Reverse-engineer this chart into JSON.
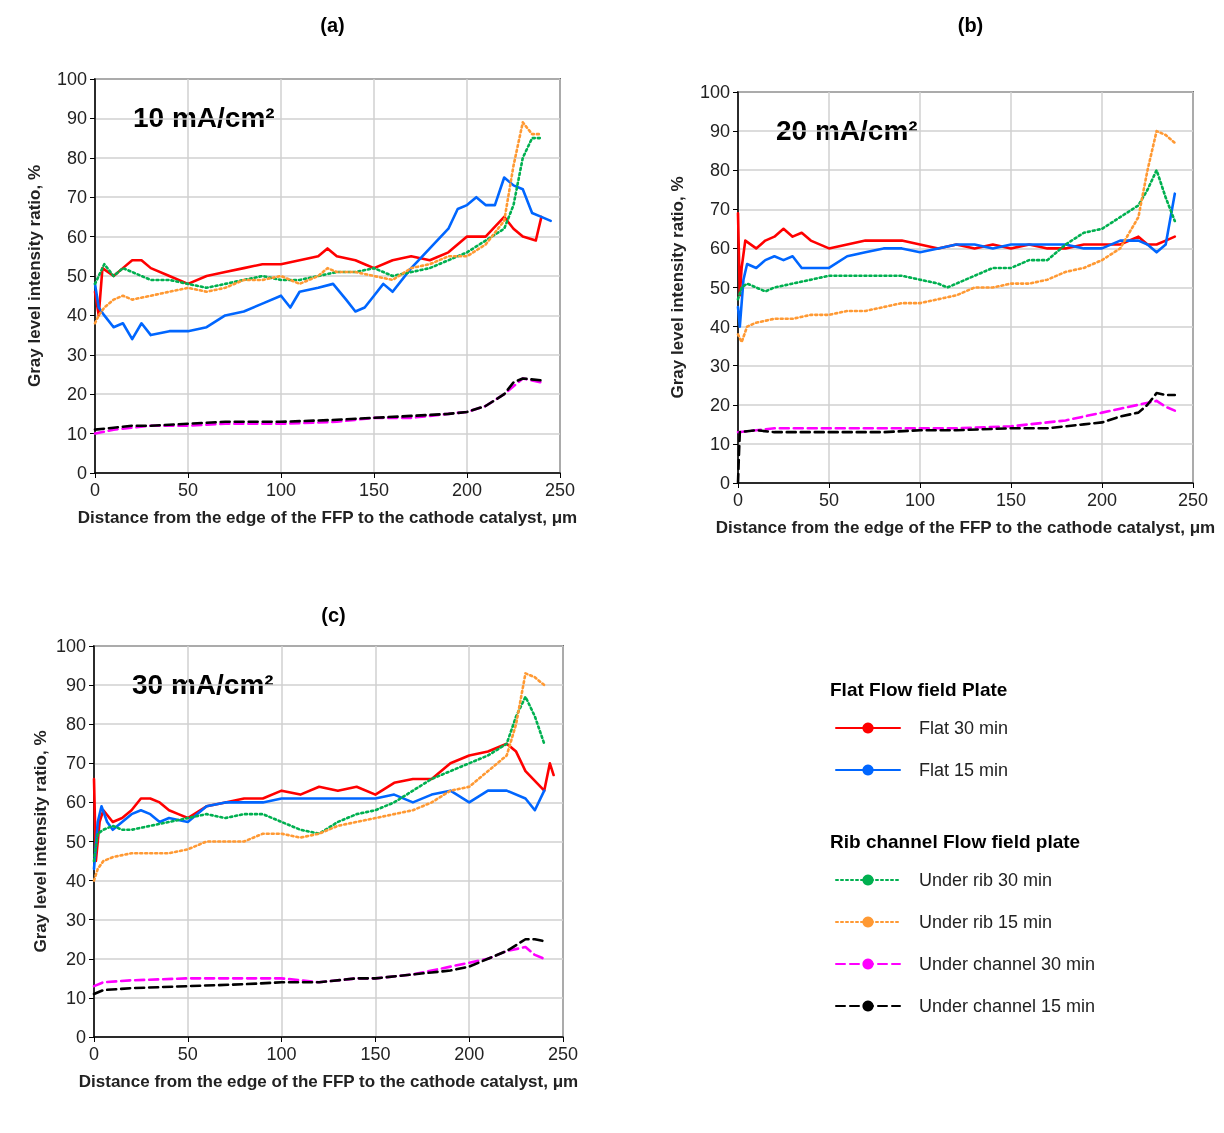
{
  "chart_data": [
    {
      "type": "line",
      "title": "(a)",
      "xlabel": "Distance from the edge of the FFP to the cathode catalyst, μm",
      "ylabel": "Gray level intensity ratio, %",
      "annotations": [
        "10 mA/cm²"
      ],
      "xlim": [
        0,
        250
      ],
      "ylim": [
        0,
        100
      ],
      "xticks": [
        0,
        50,
        100,
        150,
        200,
        250
      ],
      "yticks": [
        0,
        10,
        20,
        30,
        40,
        50,
        60,
        70,
        80,
        90,
        100
      ],
      "grid": true,
      "series": [
        {
          "color": "#ff0000",
          "line_style": "solid",
          "x": [
            0,
            2,
            4,
            10,
            15,
            20,
            25,
            30,
            40,
            50,
            60,
            70,
            80,
            90,
            100,
            110,
            120,
            125,
            130,
            140,
            145,
            150,
            160,
            170,
            180,
            190,
            200,
            210,
            220,
            225,
            230,
            237,
            240
          ],
          "values": [
            46,
            40,
            52,
            50,
            52,
            54,
            54,
            52,
            50,
            48,
            50,
            51,
            52,
            53,
            53,
            54,
            55,
            57,
            55,
            54,
            53,
            52,
            54,
            55,
            54,
            56,
            60,
            60,
            65,
            62,
            60,
            59,
            65
          ]
        },
        {
          "color": "#0066ff",
          "line_style": "solid",
          "x": [
            0,
            2,
            5,
            10,
            15,
            20,
            25,
            30,
            40,
            50,
            60,
            70,
            80,
            90,
            100,
            105,
            110,
            120,
            128,
            135,
            140,
            145,
            150,
            155,
            160,
            170,
            180,
            190,
            195,
            200,
            205,
            210,
            215,
            220,
            225,
            230,
            235,
            240,
            245
          ],
          "values": [
            48,
            42,
            40,
            37,
            38,
            34,
            38,
            35,
            36,
            36,
            37,
            40,
            41,
            43,
            45,
            42,
            46,
            47,
            48,
            44,
            41,
            42,
            45,
            48,
            46,
            52,
            57,
            62,
            67,
            68,
            70,
            68,
            68,
            75,
            73,
            72,
            66,
            65,
            64
          ]
        },
        {
          "color": "#00b050",
          "line_style": "dotted",
          "x": [
            0,
            2,
            5,
            10,
            15,
            20,
            30,
            40,
            50,
            60,
            70,
            80,
            90,
            100,
            110,
            120,
            130,
            140,
            150,
            160,
            170,
            180,
            190,
            200,
            210,
            220,
            225,
            230,
            235,
            240
          ],
          "values": [
            48,
            50,
            53,
            50,
            52,
            51,
            49,
            49,
            48,
            47,
            48,
            49,
            50,
            49,
            49,
            50,
            51,
            51,
            52,
            50,
            51,
            52,
            54,
            56,
            59,
            62,
            68,
            80,
            85,
            85
          ]
        },
        {
          "color": "#ff9933",
          "line_style": "dotted",
          "x": [
            0,
            2,
            5,
            10,
            15,
            20,
            30,
            40,
            50,
            60,
            70,
            80,
            90,
            100,
            110,
            120,
            125,
            130,
            140,
            150,
            160,
            170,
            180,
            190,
            200,
            210,
            220,
            225,
            230,
            235,
            240
          ],
          "values": [
            38,
            40,
            42,
            44,
            45,
            44,
            45,
            46,
            47,
            46,
            47,
            49,
            49,
            50,
            48,
            50,
            52,
            51,
            51,
            50,
            49,
            52,
            53,
            55,
            55,
            58,
            64,
            78,
            89,
            86,
            86
          ]
        },
        {
          "color": "#ff00ff",
          "line_style": "dashed",
          "x": [
            0,
            10,
            20,
            30,
            50,
            70,
            100,
            130,
            150,
            170,
            190,
            200,
            210,
            220,
            225,
            230,
            235,
            240
          ],
          "values": [
            10,
            11,
            11.5,
            12,
            12,
            12.5,
            12.5,
            13,
            14,
            14,
            15,
            15.5,
            17,
            20,
            22,
            24,
            23.5,
            23
          ]
        },
        {
          "color": "#000000",
          "line_style": "dashed",
          "x": [
            0,
            10,
            20,
            30,
            50,
            70,
            100,
            130,
            150,
            170,
            190,
            200,
            210,
            220,
            225,
            230,
            240
          ],
          "values": [
            11,
            11.5,
            12,
            12,
            12.5,
            13,
            13,
            13.5,
            14,
            14.5,
            15,
            15.5,
            17,
            20,
            23,
            24,
            23.5
          ]
        }
      ]
    },
    {
      "type": "line",
      "title": "(b)",
      "xlabel": "Distance from the edge of the FFP to the cathode catalyst, μm",
      "ylabel": "Gray level intensity ratio, %",
      "annotations": [
        "20 mA/cm²"
      ],
      "xlim": [
        0,
        250
      ],
      "ylim": [
        0,
        100
      ],
      "xticks": [
        0,
        50,
        100,
        150,
        200,
        250
      ],
      "yticks": [
        0,
        10,
        20,
        30,
        40,
        50,
        60,
        70,
        80,
        90,
        100
      ],
      "grid": true,
      "series": [
        {
          "color": "#ff0000",
          "line_style": "solid",
          "x": [
            0,
            1,
            2,
            4,
            10,
            15,
            20,
            25,
            30,
            35,
            40,
            50,
            60,
            70,
            80,
            90,
            100,
            110,
            120,
            130,
            140,
            150,
            160,
            170,
            180,
            190,
            200,
            210,
            220,
            225,
            230,
            235,
            240
          ],
          "values": [
            69,
            48,
            55,
            62,
            60,
            62,
            63,
            65,
            63,
            64,
            62,
            60,
            61,
            62,
            62,
            62,
            61,
            60,
            61,
            60,
            61,
            60,
            61,
            60,
            60,
            61,
            61,
            61,
            63,
            61,
            61,
            62,
            63
          ]
        },
        {
          "color": "#0066ff",
          "line_style": "solid",
          "x": [
            0,
            1,
            3,
            5,
            10,
            15,
            20,
            25,
            30,
            35,
            45,
            50,
            60,
            70,
            80,
            90,
            100,
            110,
            120,
            130,
            140,
            150,
            160,
            170,
            180,
            190,
            200,
            210,
            220,
            225,
            230,
            235,
            240
          ],
          "values": [
            45,
            40,
            52,
            56,
            55,
            57,
            58,
            57,
            58,
            55,
            55,
            55,
            58,
            59,
            60,
            60,
            59,
            60,
            61,
            61,
            60,
            61,
            61,
            61,
            61,
            60,
            60,
            62,
            62,
            61,
            59,
            61,
            74
          ]
        },
        {
          "color": "#00b050",
          "line_style": "dotted",
          "x": [
            0,
            2,
            5,
            10,
            15,
            20,
            30,
            40,
            50,
            60,
            70,
            80,
            90,
            100,
            110,
            115,
            120,
            130,
            140,
            150,
            160,
            170,
            180,
            190,
            200,
            210,
            220,
            225,
            230,
            235,
            240
          ],
          "values": [
            47,
            50,
            51,
            50,
            49,
            50,
            51,
            52,
            53,
            53,
            53,
            53,
            53,
            52,
            51,
            50,
            51,
            53,
            55,
            55,
            57,
            57,
            61,
            64,
            65,
            68,
            71,
            75,
            80,
            73,
            67
          ]
        },
        {
          "color": "#ff9933",
          "line_style": "dotted",
          "x": [
            0,
            2,
            5,
            10,
            20,
            30,
            40,
            50,
            60,
            70,
            80,
            90,
            100,
            110,
            120,
            130,
            140,
            150,
            160,
            170,
            180,
            190,
            200,
            210,
            220,
            225,
            230,
            235,
            240
          ],
          "values": [
            38,
            36,
            40,
            41,
            42,
            42,
            43,
            43,
            44,
            44,
            45,
            46,
            46,
            47,
            48,
            50,
            50,
            51,
            51,
            52,
            54,
            55,
            57,
            60,
            68,
            80,
            90,
            89,
            87
          ]
        },
        {
          "color": "#ff00ff",
          "line_style": "dashed",
          "x": [
            0,
            10,
            20,
            50,
            80,
            100,
            120,
            150,
            170,
            180,
            190,
            200,
            210,
            220,
            230,
            235,
            240
          ],
          "values": [
            13,
            13.5,
            14,
            14,
            14,
            14,
            14,
            14.5,
            15.5,
            16,
            17,
            18,
            19,
            20,
            21,
            19.5,
            18.5
          ]
        },
        {
          "color": "#000000",
          "line_style": "dashed",
          "x": [
            0,
            0.5,
            1,
            10,
            20,
            50,
            80,
            100,
            120,
            150,
            170,
            180,
            190,
            200,
            210,
            220,
            225,
            230,
            235,
            240
          ],
          "values": [
            0,
            7,
            13,
            13.5,
            13,
            13,
            13,
            13.5,
            13.5,
            14,
            14,
            14.5,
            15,
            15.5,
            17,
            18,
            20,
            23,
            22.5,
            22.5
          ]
        }
      ]
    },
    {
      "type": "line",
      "title": "(c)",
      "xlabel": "Distance from the edge of the FFP to the cathode catalyst, μm",
      "ylabel": "Gray level intensity ratio, %",
      "annotations": [
        "30 mA/cm²",
        "Rib channel Flow field plate"
      ],
      "legend_title": "Flat Flow field Plate",
      "legend": "right",
      "xlim": [
        0,
        250
      ],
      "ylim": [
        0,
        100
      ],
      "xticks": [
        0,
        50,
        100,
        150,
        200,
        250
      ],
      "yticks": [
        0,
        10,
        20,
        30,
        40,
        50,
        60,
        70,
        80,
        90,
        100
      ],
      "grid": true,
      "series": [
        {
          "name": "Flat 30 min",
          "color": "#ff0000",
          "line_style": "solid",
          "x": [
            0,
            1,
            3,
            5,
            10,
            15,
            20,
            25,
            30,
            35,
            40,
            45,
            50,
            60,
            70,
            80,
            90,
            100,
            110,
            120,
            130,
            140,
            150,
            160,
            170,
            180,
            190,
            200,
            210,
            220,
            225,
            230,
            240,
            243,
            245
          ],
          "values": [
            66,
            45,
            55,
            58,
            55,
            56,
            58,
            61,
            61,
            60,
            58,
            57,
            56,
            59,
            60,
            61,
            61,
            63,
            62,
            64,
            63,
            64,
            62,
            65,
            66,
            66,
            70,
            72,
            73,
            75,
            73,
            68,
            63,
            70,
            67
          ]
        },
        {
          "name": "Flat 15 min",
          "color": "#0066ff",
          "line_style": "solid",
          "x": [
            0,
            2,
            4,
            7,
            10,
            15,
            20,
            25,
            30,
            35,
            40,
            50,
            60,
            70,
            80,
            90,
            100,
            110,
            120,
            130,
            140,
            150,
            160,
            170,
            180,
            190,
            200,
            210,
            220,
            230,
            235,
            240
          ],
          "values": [
            43,
            55,
            59,
            55,
            53,
            55,
            57,
            58,
            57,
            55,
            56,
            55,
            59,
            60,
            60,
            60,
            61,
            61,
            61,
            61,
            61,
            61,
            62,
            60,
            62,
            63,
            60,
            63,
            63,
            61,
            58,
            63
          ]
        },
        {
          "name": "Under rib 30 min",
          "color": "#00b050",
          "line_style": "dotted",
          "x": [
            0,
            2,
            5,
            10,
            15,
            20,
            30,
            40,
            50,
            60,
            70,
            80,
            90,
            100,
            110,
            120,
            130,
            140,
            150,
            160,
            170,
            180,
            190,
            200,
            210,
            220,
            225,
            230,
            235,
            240
          ],
          "values": [
            45,
            52,
            53,
            54,
            53,
            53,
            54,
            55,
            56,
            57,
            56,
            57,
            57,
            55,
            53,
            52,
            55,
            57,
            58,
            60,
            63,
            66,
            68,
            70,
            72,
            75,
            82,
            87,
            82,
            75
          ]
        },
        {
          "name": "Under rib 15 min",
          "color": "#ff9933",
          "line_style": "dotted",
          "x": [
            0,
            2,
            5,
            10,
            20,
            30,
            40,
            50,
            60,
            70,
            80,
            90,
            100,
            110,
            120,
            130,
            140,
            150,
            160,
            170,
            180,
            190,
            200,
            210,
            220,
            225,
            230,
            235,
            240
          ],
          "values": [
            40,
            43,
            45,
            46,
            47,
            47,
            47,
            48,
            50,
            50,
            50,
            52,
            52,
            51,
            52,
            54,
            55,
            56,
            57,
            58,
            60,
            63,
            64,
            68,
            72,
            80,
            93,
            92,
            90
          ]
        },
        {
          "name": "Under channel 30 min",
          "color": "#ff00ff",
          "line_style": "dashed",
          "x": [
            0,
            5,
            20,
            50,
            80,
            100,
            120,
            140,
            150,
            160,
            170,
            180,
            190,
            200,
            210,
            220,
            230,
            235,
            240
          ],
          "values": [
            13,
            14,
            14.5,
            15,
            15,
            15,
            14,
            15,
            15,
            15.5,
            16,
            17,
            18,
            19,
            20,
            22,
            23,
            21,
            20
          ]
        },
        {
          "name": "Under channel 15 min",
          "color": "#000000",
          "line_style": "dashed",
          "x": [
            0,
            5,
            20,
            50,
            80,
            100,
            120,
            140,
            150,
            170,
            180,
            190,
            200,
            210,
            220,
            230,
            235,
            240
          ],
          "values": [
            11,
            12,
            12.5,
            13,
            13.5,
            14,
            14,
            15,
            15,
            16,
            16.5,
            17,
            18,
            20,
            22,
            25,
            25,
            24.5
          ]
        }
      ]
    }
  ]
}
